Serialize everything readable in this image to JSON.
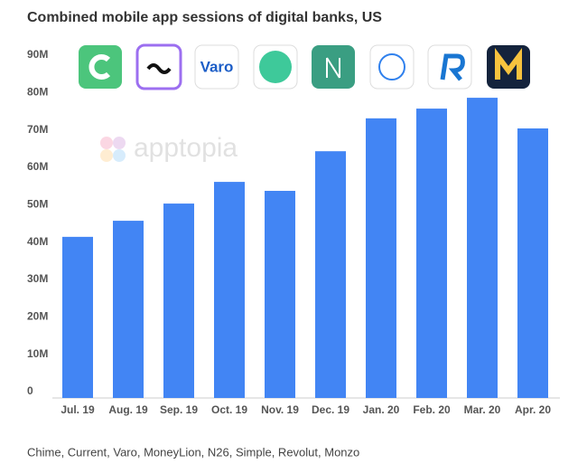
{
  "chart_data": {
    "type": "bar",
    "title": "Combined mobile app sessions of digital banks, US",
    "subtitle": "Chime, Current, Varo, MoneyLion, N26, Simple, Revolut, Monzo",
    "annotations": [
      "apptopia",
      "Varo"
    ],
    "categories": [
      "Jul. 19",
      "Aug. 19",
      "Sep. 19",
      "Oct. 19",
      "Nov. 19",
      "Dec. 19",
      "Jan. 20",
      "Feb. 20",
      "Mar. 20",
      "Apr. 20"
    ],
    "values": [
      43.1,
      47.4,
      52,
      57.8,
      55.4,
      66,
      74.8,
      77.4,
      80.3,
      72.1
    ],
    "color": "#4285f4",
    "ylim": [
      0,
      90
    ],
    "yticks": [
      0,
      {
        "value": 10,
        "label": "10M"
      },
      {
        "value": 20,
        "label": "20M"
      },
      {
        "value": 30,
        "label": "30M"
      },
      {
        "value": 40,
        "label": "40M"
      },
      {
        "value": 50,
        "label": "50M"
      },
      {
        "value": 60,
        "label": "60M"
      },
      {
        "value": 70,
        "label": "70M"
      },
      {
        "value": 80,
        "label": "80M"
      },
      {
        "value": 90,
        "label": "90M"
      }
    ],
    "grid": false
  }
}
